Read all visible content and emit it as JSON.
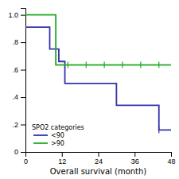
{
  "chart_data": {
    "type": "step",
    "xlabel": "Overall survival (month)",
    "xlim": [
      0,
      48
    ],
    "ylim": [
      0.0,
      1.05
    ],
    "xticks": [
      0,
      12,
      24,
      36,
      48
    ],
    "yticks": [
      0,
      {
        "value": 0.2,
        "label": ".2"
      },
      {
        "value": 0.4,
        "label": ".4"
      },
      {
        "value": 0.6,
        "label": ".6"
      },
      {
        "value": 0.8,
        "label": ".8"
      },
      {
        "value": 1.0,
        "label": "1.0"
      }
    ],
    "grid": false,
    "legend": "lower left",
    "legend_title": "SPO2 categories",
    "series": [
      {
        "name": "<90",
        "color": "#3333aa",
        "x": [
          0,
          8,
          8,
          11,
          11,
          13,
          13,
          15,
          15,
          30,
          30,
          36,
          36,
          44,
          44,
          48
        ],
        "values": [
          0.91,
          0.91,
          0.75,
          0.75,
          0.66,
          0.66,
          0.5,
          0.5,
          0.5,
          0.5,
          0.34,
          0.34,
          0.34,
          0.16,
          0.16,
          0.16
        ],
        "censored_x": [
          44
        ],
        "censored_y": 0.16
      },
      {
        "name": ">90",
        "color": "#22aa22",
        "x": [
          0,
          10,
          10,
          14,
          14,
          48
        ],
        "values": [
          1.0,
          1.0,
          0.635,
          0.635,
          0.635,
          0.635
        ],
        "censored_x": [
          14,
          20,
          26,
          32,
          38,
          44
        ],
        "censored_y": 0.635
      }
    ]
  }
}
